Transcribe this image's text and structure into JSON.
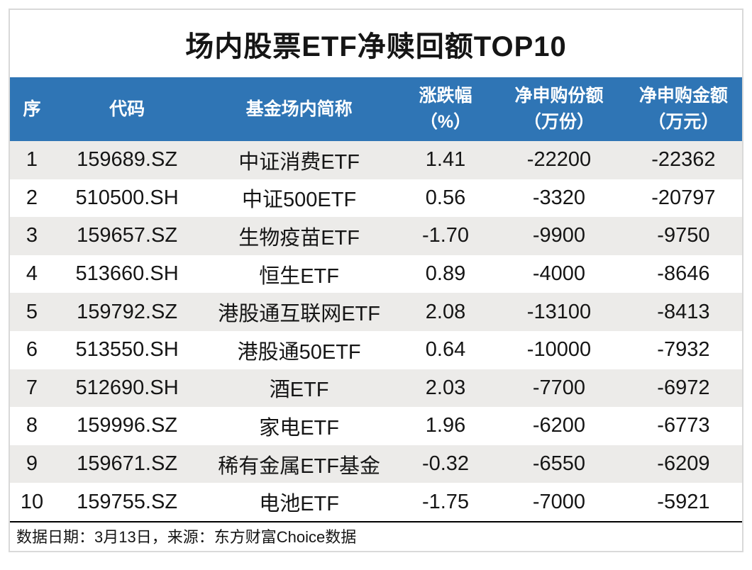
{
  "page": {
    "title": "场内股票ETF净赎回额TOP10"
  },
  "table": {
    "columns": [
      {
        "id": "seq",
        "line1": "序",
        "line2": ""
      },
      {
        "id": "code",
        "line1": "代码",
        "line2": ""
      },
      {
        "id": "name",
        "line1": "基金场内简称",
        "line2": ""
      },
      {
        "id": "change",
        "line1": "涨跌幅",
        "line2": "（%）"
      },
      {
        "id": "shares",
        "line1": "净申购份额",
        "line2": "（万份）"
      },
      {
        "id": "amount",
        "line1": "净申购金额",
        "line2": "（万元）"
      }
    ],
    "rows": [
      {
        "seq": "1",
        "code": "159689.SZ",
        "name": "中证消费ETF",
        "change": "1.41",
        "shares": "-22200",
        "amount": "-22362"
      },
      {
        "seq": "2",
        "code": "510500.SH",
        "name": "中证500ETF",
        "change": "0.56",
        "shares": "-3320",
        "amount": "-20797"
      },
      {
        "seq": "3",
        "code": "159657.SZ",
        "name": "生物疫苗ETF",
        "change": "-1.70",
        "shares": "-9900",
        "amount": "-9750"
      },
      {
        "seq": "4",
        "code": "513660.SH",
        "name": "恒生ETF",
        "change": "0.89",
        "shares": "-4000",
        "amount": "-8646"
      },
      {
        "seq": "5",
        "code": "159792.SZ",
        "name": "港股通互联网ETF",
        "change": "2.08",
        "shares": "-13100",
        "amount": "-8413"
      },
      {
        "seq": "6",
        "code": "513550.SH",
        "name": "港股通50ETF",
        "change": "0.64",
        "shares": "-10000",
        "amount": "-7932"
      },
      {
        "seq": "7",
        "code": "512690.SH",
        "name": "酒ETF",
        "change": "2.03",
        "shares": "-7700",
        "amount": "-6972"
      },
      {
        "seq": "8",
        "code": "159996.SZ",
        "name": "家电ETF",
        "change": "1.96",
        "shares": "-6200",
        "amount": "-6773"
      },
      {
        "seq": "9",
        "code": "159671.SZ",
        "name": "稀有金属ETF基金",
        "change": "-0.32",
        "shares": "-6550",
        "amount": "-6209"
      },
      {
        "seq": "10",
        "code": "159755.SZ",
        "name": "电池ETF",
        "change": "-1.75",
        "shares": "-7000",
        "amount": "-5921"
      }
    ]
  },
  "footer": {
    "note": "数据日期：3月13日，来源：东方财富Choice数据"
  },
  "colors": {
    "header_bg": "#2f75b5",
    "header_text": "#ffffff",
    "stripe": "#ecebe9",
    "frame_border": "#d9d9d9",
    "footer_top_border": "#000000",
    "text": "#151515"
  },
  "chart_data": {
    "type": "table",
    "title": "场内股票ETF净赎回额TOP10",
    "columns": [
      "序",
      "代码",
      "基金场内简称",
      "涨跌幅（%）",
      "净申购份额（万份）",
      "净申购金额（万元）"
    ],
    "rows": [
      [
        1,
        "159689.SZ",
        "中证消费ETF",
        1.41,
        -22200,
        -22362
      ],
      [
        2,
        "510500.SH",
        "中证500ETF",
        0.56,
        -3320,
        -20797
      ],
      [
        3,
        "159657.SZ",
        "生物疫苗ETF",
        -1.7,
        -9900,
        -9750
      ],
      [
        4,
        "513660.SH",
        "恒生ETF",
        0.89,
        -4000,
        -8646
      ],
      [
        5,
        "159792.SZ",
        "港股通互联网ETF",
        2.08,
        -13100,
        -8413
      ],
      [
        6,
        "513550.SH",
        "港股通50ETF",
        0.64,
        -10000,
        -7932
      ],
      [
        7,
        "512690.SH",
        "酒ETF",
        2.03,
        -7700,
        -6972
      ],
      [
        8,
        "159996.SZ",
        "家电ETF",
        1.96,
        -6200,
        -6773
      ],
      [
        9,
        "159671.SZ",
        "稀有金属ETF基金",
        -0.32,
        -6550,
        -6209
      ],
      [
        10,
        "159755.SZ",
        "电池ETF",
        -1.75,
        -7000,
        -5921
      ]
    ],
    "note": "数据日期：3月13日，来源：东方财富Choice数据",
    "layout": {
      "striped_rows": "odd",
      "header_style": "blue-band",
      "alignment": "center"
    }
  }
}
